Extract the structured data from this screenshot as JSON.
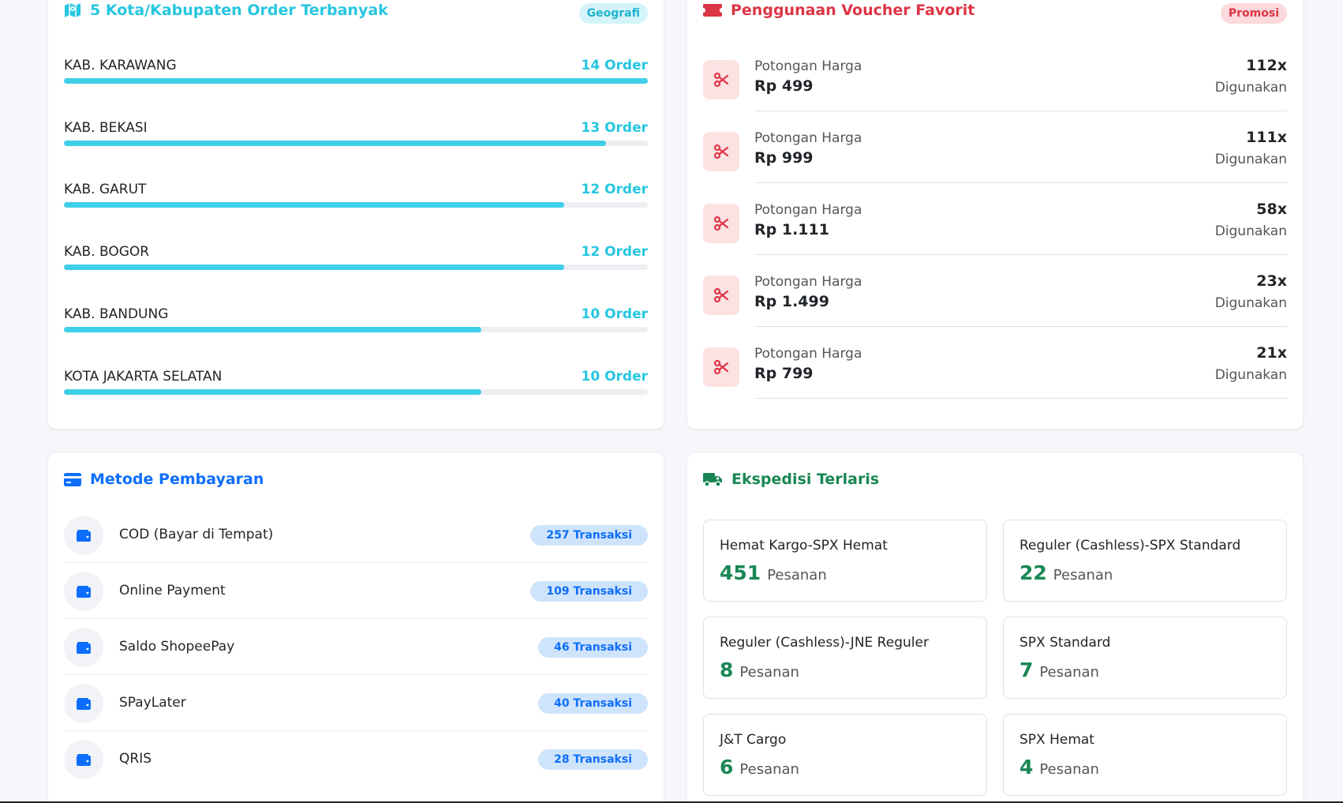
{
  "geography": {
    "title": "5 Kota/Kabupaten Order Terbanyak",
    "badge": "Geografi",
    "accent": "#26c6e0",
    "items": [
      {
        "name": "KAB. KARAWANG",
        "count": "14 Order",
        "value": 14
      },
      {
        "name": "KAB. BEKASI",
        "count": "13 Order",
        "value": 13
      },
      {
        "name": "KAB. GARUT",
        "count": "12 Order",
        "value": 12
      },
      {
        "name": "KAB. BOGOR",
        "count": "12 Order",
        "value": 12
      },
      {
        "name": "KAB. BANDUNG",
        "count": "10 Order",
        "value": 10
      },
      {
        "name": "KOTA JAKARTA SELATAN",
        "count": "10 Order",
        "value": 10
      }
    ]
  },
  "voucher": {
    "title": "Penggunaan Voucher Favorit",
    "badge": "Promosi",
    "accent": "#dc3545",
    "icon": "scissors-icon",
    "items": [
      {
        "label": "Potongan Harga",
        "value": "Rp 499",
        "count": "112x",
        "sub": "Digunakan"
      },
      {
        "label": "Potongan Harga",
        "value": "Rp 999",
        "count": "111x",
        "sub": "Digunakan"
      },
      {
        "label": "Potongan Harga",
        "value": "Rp 1.111",
        "count": "58x",
        "sub": "Digunakan"
      },
      {
        "label": "Potongan Harga",
        "value": "Rp 1.499",
        "count": "23x",
        "sub": "Digunakan"
      },
      {
        "label": "Potongan Harga",
        "value": "Rp 799",
        "count": "21x",
        "sub": "Digunakan"
      }
    ]
  },
  "payment": {
    "title": "Metode Pembayaran",
    "accent": "#0d6efd",
    "icon": "wallet-icon",
    "items": [
      {
        "label": "COD (Bayar di Tempat)",
        "badge": "257 Transaksi"
      },
      {
        "label": "Online Payment",
        "badge": "109 Transaksi"
      },
      {
        "label": "Saldo ShopeePay",
        "badge": "46 Transaksi"
      },
      {
        "label": "SPayLater",
        "badge": "40 Transaksi"
      },
      {
        "label": "QRIS",
        "badge": "28 Transaksi"
      }
    ]
  },
  "expedition": {
    "title": "Ekspedisi Terlaris",
    "accent": "#198754",
    "icon": "truck-icon",
    "items": [
      {
        "name": "Hemat Kargo-SPX Hemat",
        "count": "451",
        "unit": "Pesanan"
      },
      {
        "name": "Reguler (Cashless)-SPX Standard",
        "count": "22",
        "unit": "Pesanan"
      },
      {
        "name": "Reguler (Cashless)-JNE Reguler",
        "count": "8",
        "unit": "Pesanan"
      },
      {
        "name": "SPX Standard",
        "count": "7",
        "unit": "Pesanan"
      },
      {
        "name": "J&T Cargo",
        "count": "6",
        "unit": "Pesanan"
      },
      {
        "name": "SPX Hemat",
        "count": "4",
        "unit": "Pesanan"
      }
    ]
  }
}
